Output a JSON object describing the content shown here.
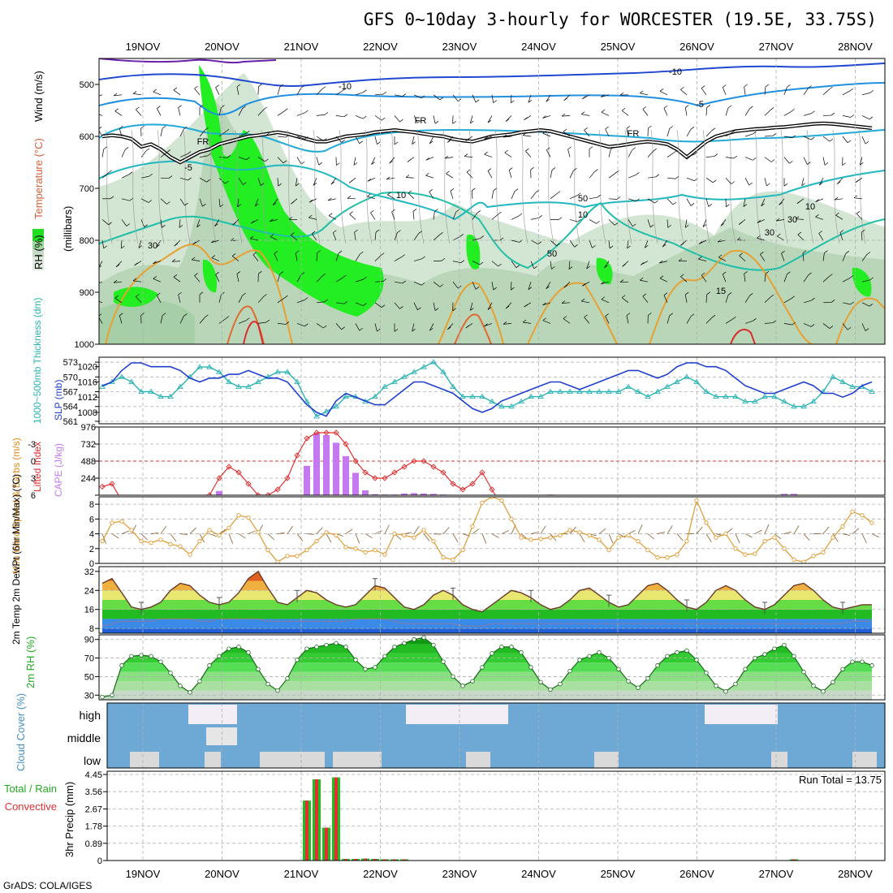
{
  "title": "GFS 0~10day 3-hourly for WORCESTER (19.5E, 33.75S)",
  "credit": "GrADS: COLA/IGES",
  "dates": [
    "19NOV",
    "20NOV",
    "21NOV",
    "22NOV",
    "23NOV",
    "24NOV",
    "25NOV",
    "26NOV",
    "27NOV",
    "28NOV"
  ],
  "run_total_label": "Run Total = 13.75",
  "chart_data": [
    {
      "id": "upper-air",
      "type": "contour",
      "ylabel_rh": "RH (%)",
      "ylabel_temp": "Temperature (°C)",
      "ylabel_wind": "Wind (m/s)",
      "ylabel_p": "(millibars)",
      "yticks": [
        500,
        600,
        700,
        800,
        900,
        1000
      ],
      "ylim": [
        1000,
        450
      ],
      "contour_labels": [
        "-10",
        "-10",
        "-5",
        "-5",
        "FR",
        "FR",
        "FR",
        "10",
        "10",
        "15",
        "30",
        "30",
        "50",
        "50",
        "30",
        "10"
      ],
      "freezing_level_mb": [
        600,
        598,
        600,
        605,
        620,
        615,
        625,
        640,
        650,
        640,
        630,
        625,
        615,
        610,
        605,
        600,
        598,
        595,
        592,
        595,
        600,
        605,
        610,
        610,
        605,
        600,
        598,
        596,
        592,
        590,
        588,
        590,
        592,
        595,
        598,
        600,
        605,
        608,
        610,
        605,
        600,
        598,
        596,
        592,
        590,
        588,
        590,
        595,
        600,
        605,
        610,
        615,
        620,
        618,
        615,
        612,
        610,
        612,
        615,
        625,
        640,
        625,
        610,
        600,
        595,
        590,
        588,
        586,
        585,
        583,
        582,
        580,
        578,
        576,
        575,
        576,
        578,
        580,
        582,
        584
      ]
    },
    {
      "id": "thickness-slp",
      "type": "line",
      "ylabel_left": "1000~500mb Thickness (dm)",
      "ylabel_right": "SLP (mb)",
      "yticks_left": [
        561,
        564,
        567,
        570,
        573
      ],
      "yticks_right": [
        1008,
        1012,
        1016,
        1020
      ],
      "slp_mb": [
        1015,
        1016,
        1019,
        1021,
        1021,
        1020,
        1020,
        1020,
        1019,
        1017,
        1016,
        1017,
        1017,
        1018,
        1018,
        1019,
        1018,
        1017,
        1017,
        1016,
        1013,
        1010,
        1008,
        1007,
        1011,
        1013,
        1012,
        1011,
        1010,
        1010,
        1012,
        1014,
        1016,
        1016,
        1015,
        1014,
        1013,
        1011,
        1009,
        1008,
        1009,
        1011,
        1012,
        1013,
        1014,
        1015,
        1016,
        1016,
        1015,
        1014,
        1015,
        1016,
        1017,
        1018,
        1019,
        1019,
        1018,
        1017,
        1018,
        1020,
        1021,
        1021,
        1020,
        1020,
        1019,
        1017,
        1015,
        1014,
        1013,
        1013,
        1014,
        1015,
        1016,
        1015,
        1013,
        1013,
        1012,
        1013,
        1015,
        1016
      ],
      "thickness_dm": [
        568,
        569,
        570,
        569,
        567,
        567,
        566,
        566,
        568,
        570,
        572,
        572,
        571,
        569,
        568,
        568,
        569,
        570,
        571,
        571,
        569,
        565,
        562,
        563,
        564,
        566,
        566,
        565,
        566,
        568,
        569,
        570,
        571,
        572,
        573,
        571,
        568,
        566,
        566,
        566,
        565,
        564,
        564,
        565,
        566,
        566,
        567,
        567,
        567,
        567,
        567,
        567,
        567,
        567,
        568,
        567,
        566,
        567,
        568,
        569,
        570,
        569,
        567,
        566,
        566,
        566,
        565,
        565,
        566,
        566,
        565,
        564,
        564,
        565,
        567,
        570,
        569,
        568,
        568,
        567
      ]
    },
    {
      "id": "cape-li",
      "type": "bar+line",
      "ylabel_left": "Lifted Index",
      "ylabel_right": "CAPE (J/kg)",
      "yticks_left": [
        -3,
        0,
        3,
        6
      ],
      "yticks_right": [
        244,
        488,
        732,
        976
      ],
      "ylim_li": [
        6,
        -6
      ],
      "ylim_cape": [
        0,
        976
      ],
      "lifted_index": [
        4.5,
        4,
        7,
        9,
        11,
        11,
        12,
        12,
        12,
        11,
        9,
        6,
        3,
        1,
        2,
        4,
        6,
        6,
        5,
        3,
        -1,
        -4,
        -5,
        -5,
        -5,
        -3,
        0,
        2,
        3,
        3,
        2,
        1,
        0,
        0,
        1,
        2,
        4,
        5,
        4,
        2,
        5,
        8,
        11,
        12,
        12,
        12,
        12,
        12,
        12,
        12,
        12,
        12,
        12,
        12,
        12,
        12,
        12,
        12,
        12,
        12,
        12,
        12,
        12,
        12,
        12,
        12,
        12,
        12,
        12,
        12,
        12,
        12,
        12,
        12,
        12,
        12,
        12,
        12,
        12,
        12
      ],
      "cape": [
        0,
        0,
        0,
        0,
        0,
        0,
        0,
        0,
        0,
        0,
        0,
        0,
        60,
        0,
        0,
        0,
        0,
        0,
        0,
        0,
        0,
        420,
        890,
        860,
        750,
        560,
        320,
        70,
        15,
        10,
        10,
        25,
        30,
        25,
        20,
        10,
        0,
        0,
        0,
        0,
        0,
        0,
        0,
        0,
        0,
        0,
        10,
        0,
        0,
        0,
        0,
        0,
        0,
        0,
        0,
        0,
        0,
        0,
        0,
        0,
        0,
        0,
        0,
        0,
        0,
        0,
        0,
        0,
        0,
        0,
        20,
        20,
        0,
        0,
        0,
        0,
        0,
        0,
        0,
        0
      ]
    },
    {
      "id": "wind-10m",
      "type": "line",
      "ylabel": "10m Wind Speed & Barbs (m/s)",
      "yticks": [
        0,
        2,
        4,
        6,
        8
      ],
      "ylim": [
        0,
        9
      ],
      "speed_ms": [
        3,
        5.5,
        5.7,
        4.5,
        3,
        2.8,
        3.2,
        2.6,
        2.3,
        1.2,
        3,
        4.5,
        3.8,
        4.8,
        6.5,
        6.2,
        4.2,
        1.8,
        0.2,
        1,
        1,
        1.8,
        3,
        4.2,
        3.8,
        2.2,
        2,
        1.5,
        1.8,
        1.2,
        4,
        3.8,
        3.5,
        4.5,
        3,
        0.8,
        0.5,
        1.8,
        5,
        8.2,
        9,
        8.5,
        6,
        3.5,
        3.2,
        3.3,
        3.5,
        3.8,
        4.5,
        4.2,
        3.8,
        3.2,
        1.8,
        3.5,
        3.8,
        3,
        1.8,
        0.8,
        0.8,
        1.2,
        3,
        8.5,
        5.5,
        3.5,
        4,
        2,
        1.2,
        1.3,
        3,
        3.5,
        2,
        0.5,
        0.2,
        1,
        1.5,
        3.5,
        5,
        7,
        6.5,
        5.5
      ]
    },
    {
      "id": "temp-2m",
      "type": "area",
      "ylabel": "2m Temp 2m DewPt (6hr Min/Max) (°C)",
      "yticks": [
        8,
        16,
        24,
        32
      ],
      "ylim": [
        6,
        34
      ],
      "temp_c": [
        27,
        29,
        23,
        17,
        16,
        17,
        19,
        24,
        27,
        26,
        22,
        19,
        18,
        19,
        23,
        29,
        32,
        25,
        19,
        18,
        21,
        24,
        23,
        20,
        18,
        17,
        18,
        22,
        26,
        25,
        21,
        17,
        16,
        18,
        22,
        24,
        22,
        18,
        16,
        15,
        18,
        21,
        24,
        23,
        21,
        18,
        16,
        17,
        20,
        24,
        25,
        22,
        19,
        17,
        18,
        22,
        26,
        27,
        24,
        20,
        17,
        16,
        19,
        24,
        26,
        24,
        20,
        17,
        16,
        18,
        22,
        26,
        27,
        24,
        20,
        17,
        16,
        17,
        18,
        18
      ],
      "dewpt_c": [
        9,
        10,
        11,
        11,
        11,
        11,
        12,
        12,
        12,
        12,
        11,
        11,
        12,
        12,
        12,
        12,
        12,
        11,
        11,
        11,
        11,
        11,
        11,
        11,
        11,
        11,
        12,
        12,
        12,
        12,
        11,
        10,
        10,
        10,
        10,
        10,
        10,
        9,
        9,
        9,
        10,
        10,
        10,
        10,
        10,
        10,
        10,
        10,
        10,
        10,
        10,
        10,
        10,
        10,
        10,
        10,
        10,
        10,
        10,
        10,
        10,
        10,
        10,
        10,
        10,
        10,
        10,
        10,
        10,
        10,
        10,
        10,
        10,
        10,
        10,
        10,
        10,
        11,
        11,
        11
      ]
    },
    {
      "id": "rh-2m",
      "type": "area",
      "ylabel": "2m RH (%)",
      "yticks": [
        30,
        50,
        70,
        90
      ],
      "ylim": [
        25,
        95
      ],
      "rh_pct": [
        28,
        30,
        62,
        72,
        73,
        72,
        66,
        54,
        40,
        33,
        45,
        62,
        72,
        80,
        82,
        76,
        58,
        42,
        35,
        48,
        68,
        80,
        82,
        84,
        86,
        82,
        68,
        58,
        60,
        72,
        82,
        86,
        90,
        92,
        84,
        66,
        50,
        40,
        45,
        60,
        75,
        82,
        82,
        76,
        60,
        44,
        36,
        42,
        56,
        68,
        72,
        76,
        70,
        58,
        45,
        38,
        48,
        62,
        72,
        76,
        78,
        68,
        54,
        40,
        34,
        42,
        58,
        70,
        74,
        80,
        84,
        72,
        55,
        40,
        34,
        44,
        58,
        66,
        66,
        62
      ]
    },
    {
      "id": "cloud-cover",
      "type": "heatmap",
      "ylabel": "Cloud Cover (%)",
      "levels": [
        "high",
        "middle",
        "low"
      ]
    },
    {
      "id": "precip-3hr",
      "type": "bar",
      "ylabel_total": "Total / Rain",
      "ylabel_conv": "Convective",
      "ylabel": "3hr Precip (mm)",
      "yticks": [
        0,
        0.89,
        1.78,
        2.67,
        3.56,
        4.45
      ],
      "ylim": [
        0,
        4.45
      ],
      "total_mm": [
        0,
        0,
        0,
        0,
        0,
        0,
        0,
        0,
        0,
        0,
        0,
        0,
        0,
        0,
        0,
        0,
        0,
        0,
        0,
        0,
        0,
        3.1,
        4.2,
        1.7,
        4.3,
        0.08,
        0.08,
        0.1,
        0.08,
        0.05,
        0.02,
        0.02,
        0,
        0,
        0,
        0,
        0,
        0,
        0,
        0,
        0,
        0,
        0,
        0,
        0,
        0,
        0,
        0,
        0,
        0,
        0,
        0,
        0,
        0,
        0,
        0,
        0,
        0,
        0,
        0,
        0,
        0,
        0,
        0,
        0,
        0,
        0,
        0,
        0,
        0,
        0,
        0.03,
        0,
        0,
        0,
        0,
        0,
        0,
        0,
        0
      ],
      "conv_mm": [
        0,
        0,
        0,
        0,
        0,
        0,
        0,
        0,
        0,
        0,
        0,
        0,
        0,
        0,
        0,
        0,
        0,
        0,
        0,
        0,
        0,
        3.1,
        4.2,
        1.7,
        4.3,
        0.08,
        0.08,
        0.1,
        0.08,
        0.05,
        0.02,
        0.02,
        0,
        0,
        0,
        0,
        0,
        0,
        0,
        0,
        0,
        0,
        0,
        0,
        0,
        0,
        0,
        0,
        0,
        0,
        0,
        0,
        0,
        0,
        0,
        0,
        0,
        0,
        0,
        0,
        0,
        0,
        0,
        0,
        0,
        0,
        0,
        0,
        0,
        0,
        0,
        0.03,
        0,
        0,
        0,
        0,
        0,
        0,
        0,
        0
      ]
    }
  ]
}
